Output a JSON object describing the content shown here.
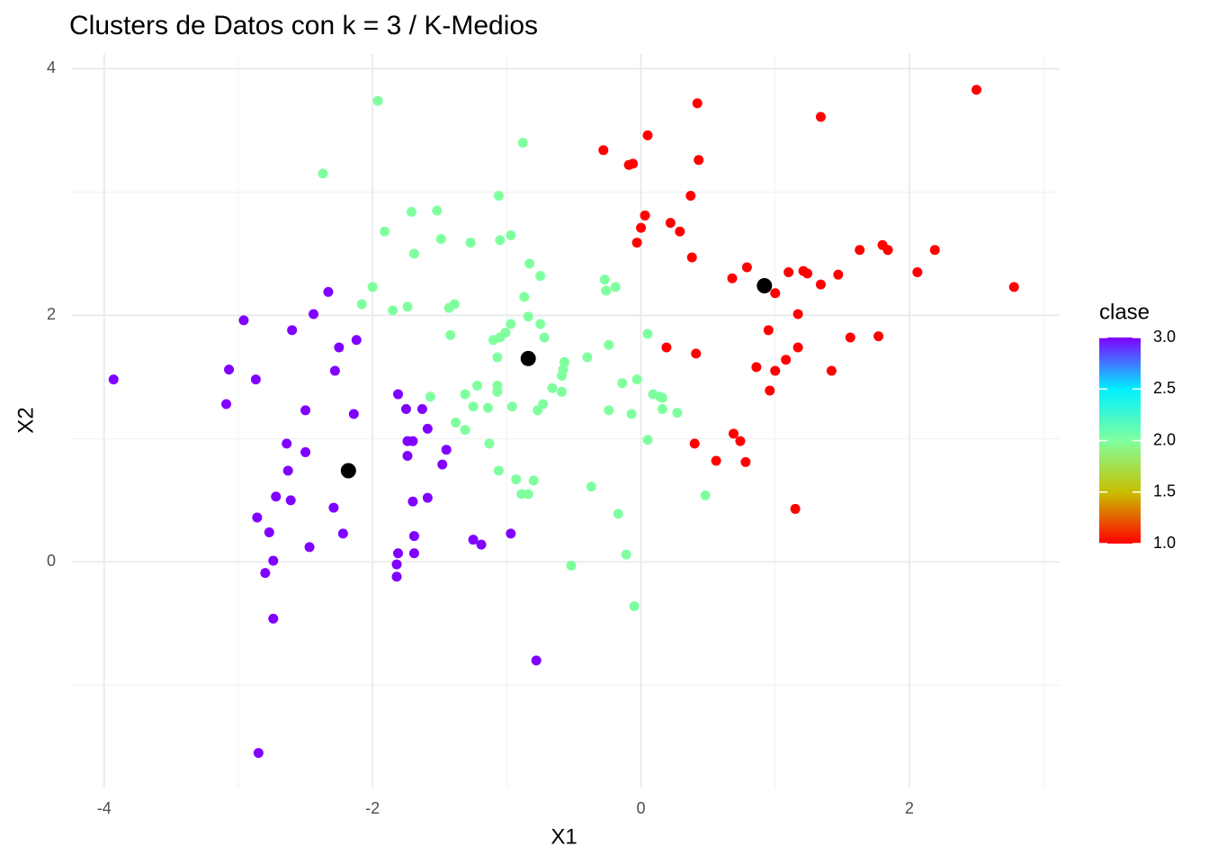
{
  "chart_data": {
    "type": "scatter",
    "title": "Clusters de Datos con k = 3 / K-Medios",
    "xlabel": "X1",
    "ylabel": "X2",
    "xlim": [
      -4.24,
      3.12
    ],
    "ylim": [
      -1.83,
      4.12
    ],
    "xticks": [
      -4,
      -2,
      0,
      2
    ],
    "yticks": [
      0,
      2,
      4
    ],
    "x_minor_grid": [
      -3,
      -1,
      1,
      3
    ],
    "y_minor_grid": [
      -1,
      1,
      3
    ],
    "grid": true,
    "colorbar": {
      "title": "clase",
      "lim": [
        1,
        3
      ],
      "ticks": [
        {
          "value": 1,
          "label": "1.0"
        },
        {
          "value": 1.5,
          "label": "1.5"
        },
        {
          "value": 2,
          "label": "2.0"
        },
        {
          "value": 2.5,
          "label": "2.5"
        },
        {
          "value": 3,
          "label": "3.0"
        }
      ],
      "colors": [
        "#ff0000",
        "#c8c000",
        "#80ff9f",
        "#00f0ff",
        "#8000ff"
      ]
    },
    "series": [
      {
        "clase": 1,
        "x": [
          2.5,
          0.42,
          1.34,
          0.05,
          -0.28,
          0.43,
          -0.06,
          -0.09,
          0.37,
          0.03,
          0.22,
          0.0,
          0.29,
          -0.03,
          1.63,
          1.8,
          1.84,
          2.19,
          0.38,
          0.79,
          2.06,
          1.1,
          1.21,
          1.24,
          1.47,
          0.68,
          1.34,
          2.78,
          1.0,
          1.17,
          0.95,
          1.56,
          1.77,
          0.19,
          1.17,
          0.41,
          1.08,
          0.86,
          1.0,
          1.42,
          0.96,
          0.69,
          0.74,
          0.4,
          0.56,
          0.78,
          1.15
        ],
        "y": [
          3.83,
          3.72,
          3.61,
          3.46,
          3.34,
          3.26,
          3.23,
          3.22,
          2.97,
          2.81,
          2.75,
          2.71,
          2.68,
          2.59,
          2.53,
          2.57,
          2.53,
          2.53,
          2.47,
          2.39,
          2.35,
          2.35,
          2.36,
          2.34,
          2.33,
          2.3,
          2.25,
          2.23,
          2.18,
          2.01,
          1.88,
          1.82,
          1.83,
          1.74,
          1.74,
          1.69,
          1.64,
          1.58,
          1.55,
          1.55,
          1.39,
          1.04,
          0.98,
          0.96,
          0.82,
          0.81,
          0.43
        ]
      },
      {
        "clase": 2,
        "x": [
          -1.96,
          -0.88,
          -2.37,
          -1.06,
          -1.71,
          -1.52,
          -1.91,
          -0.97,
          -1.05,
          -1.49,
          -1.27,
          -1.69,
          -0.83,
          -0.75,
          -0.27,
          -0.19,
          -0.26,
          -2.0,
          -0.87,
          -2.08,
          -1.39,
          -1.43,
          -1.74,
          -1.85,
          -0.84,
          -0.75,
          -0.97,
          -1.01,
          0.05,
          -1.42,
          -1.05,
          -1.1,
          -0.72,
          -0.24,
          -1.07,
          -0.4,
          -0.57,
          -0.58,
          -0.59,
          -0.03,
          -0.66,
          -0.14,
          -1.07,
          -1.22,
          -0.59,
          -1.07,
          -1.31,
          0.09,
          -1.57,
          0.14,
          0.16,
          -0.73,
          -1.25,
          -1.14,
          -0.96,
          0.16,
          -0.77,
          -0.24,
          0.27,
          -0.07,
          -1.38,
          -1.31,
          0.05,
          -1.13,
          -1.06,
          -0.93,
          -0.8,
          -0.37,
          0.48,
          -0.89,
          -0.84,
          -0.17,
          -0.11,
          -0.52,
          -0.05
        ],
        "y": [
          3.74,
          3.4,
          3.15,
          2.97,
          2.84,
          2.85,
          2.68,
          2.65,
          2.61,
          2.62,
          2.59,
          2.5,
          2.42,
          2.32,
          2.29,
          2.23,
          2.2,
          2.23,
          2.15,
          2.09,
          2.09,
          2.06,
          2.07,
          2.04,
          1.99,
          1.93,
          1.93,
          1.86,
          1.85,
          1.84,
          1.82,
          1.8,
          1.82,
          1.76,
          1.66,
          1.66,
          1.62,
          1.56,
          1.51,
          1.48,
          1.41,
          1.45,
          1.43,
          1.43,
          1.38,
          1.38,
          1.36,
          1.36,
          1.34,
          1.34,
          1.33,
          1.28,
          1.26,
          1.25,
          1.26,
          1.24,
          1.23,
          1.23,
          1.21,
          1.2,
          1.13,
          1.07,
          0.99,
          0.96,
          0.74,
          0.67,
          0.66,
          0.61,
          0.54,
          0.55,
          0.55,
          0.39,
          0.06,
          -0.03,
          -0.36
        ]
      },
      {
        "clase": 3,
        "x": [
          -3.93,
          -2.33,
          -2.44,
          -2.96,
          -2.6,
          -2.12,
          -2.25,
          -3.07,
          -2.28,
          -2.87,
          -3.09,
          -1.81,
          -2.5,
          -1.75,
          -1.63,
          -2.14,
          -1.59,
          -1.74,
          -1.7,
          -2.64,
          -1.45,
          -2.5,
          -1.74,
          -1.48,
          -2.63,
          -2.72,
          -2.61,
          -1.59,
          -1.7,
          -2.29,
          -2.86,
          -2.77,
          -2.22,
          -1.69,
          -0.97,
          -1.25,
          -1.19,
          -2.47,
          -1.81,
          -1.69,
          -2.74,
          -1.82,
          -2.8,
          -1.82,
          -2.74,
          -0.78,
          -2.85
        ],
        "y": [
          1.48,
          2.19,
          2.01,
          1.96,
          1.88,
          1.8,
          1.74,
          1.56,
          1.55,
          1.48,
          1.28,
          1.36,
          1.23,
          1.24,
          1.24,
          1.2,
          1.08,
          0.98,
          0.98,
          0.96,
          0.91,
          0.89,
          0.86,
          0.79,
          0.74,
          0.53,
          0.5,
          0.52,
          0.49,
          0.44,
          0.36,
          0.24,
          0.23,
          0.21,
          0.23,
          0.18,
          0.14,
          0.12,
          0.07,
          0.07,
          0.01,
          -0.02,
          -0.09,
          -0.12,
          -0.46,
          -0.8,
          -1.55
        ]
      },
      {
        "color": "#000000",
        "size": "large",
        "x": [
          0.92,
          -0.84,
          -2.18
        ],
        "y": [
          2.24,
          1.65,
          0.74
        ]
      }
    ]
  }
}
